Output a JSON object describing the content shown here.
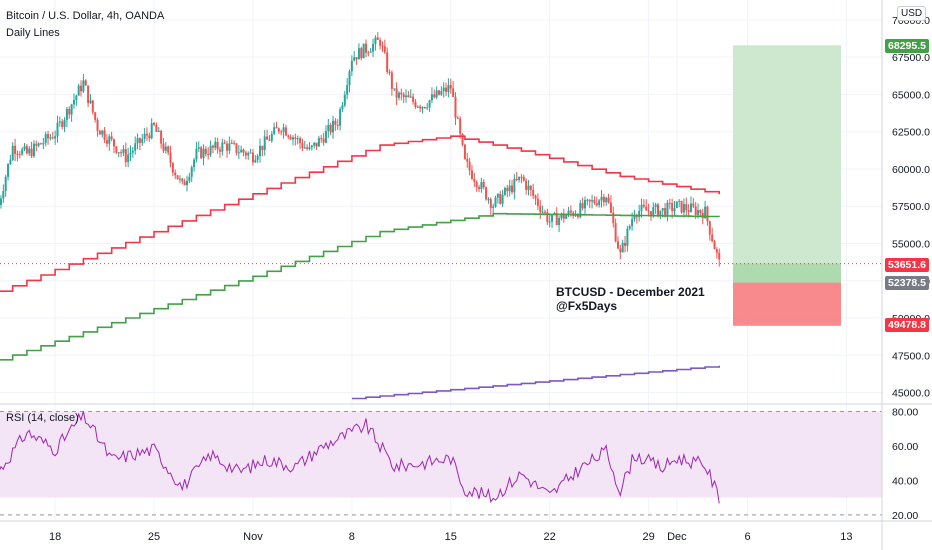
{
  "header": {
    "title": "Bitcoin / U.S. Dollar, 4h, OANDA",
    "indicator": "Daily Lines",
    "currency_button": "USD"
  },
  "annotation": {
    "line1": "BTCUSD - December 2021",
    "line2": "@Fx5Days"
  },
  "price_labels": {
    "target": "68295.5",
    "current": "53651.6",
    "entry": "52378.5",
    "stop": "49478.8"
  },
  "rsi_label": "RSI (14, close)",
  "colors": {
    "up": "#26a69a",
    "down": "#ef5350",
    "red_line": "#f23645",
    "green_line": "#43a047",
    "purple_line": "#7e57c2",
    "target_zone": "#c8e6c9",
    "stop_zone": "#f77c80",
    "entry_label": "#787b86",
    "rsi_band": "#f3e5f5",
    "rsi_line": "#9c27b0"
  },
  "chart_data": [
    {
      "type": "candlestick",
      "title": "Bitcoin / U.S. Dollar, 4h, OANDA",
      "price_axis_ticks": [
        "70000.0",
        "67500.0",
        "65000.0",
        "62500.0",
        "60000.0",
        "57500.0",
        "55000.0",
        "52500.0",
        "50000.0",
        "47500.0",
        "45000.0"
      ],
      "price_ylim": [
        44500,
        71000
      ],
      "time_axis_ticks": [
        "18",
        "25",
        "Nov",
        "8",
        "15",
        "22",
        "29",
        "Dec",
        "6",
        "13"
      ],
      "daily_close_trend": [
        {
          "date": "Oct 14",
          "value": 57600
        },
        {
          "date": "Oct 15",
          "value": 61500
        },
        {
          "date": "Oct 16",
          "value": 61000
        },
        {
          "date": "Oct 18",
          "value": 62400
        },
        {
          "date": "Oct 20",
          "value": 65800
        },
        {
          "date": "Oct 21",
          "value": 62800
        },
        {
          "date": "Oct 23",
          "value": 60800
        },
        {
          "date": "Oct 25",
          "value": 62800
        },
        {
          "date": "Oct 27",
          "value": 58800
        },
        {
          "date": "Oct 28",
          "value": 61000
        },
        {
          "date": "Oct 30",
          "value": 61600
        },
        {
          "date": "Nov 1",
          "value": 60900
        },
        {
          "date": "Nov 3",
          "value": 62900
        },
        {
          "date": "Nov 5",
          "value": 61200
        },
        {
          "date": "Nov 7",
          "value": 63200
        },
        {
          "date": "Nov 8",
          "value": 67500
        },
        {
          "date": "Nov 10",
          "value": 68600
        },
        {
          "date": "Nov 11",
          "value": 65000
        },
        {
          "date": "Nov 13",
          "value": 64300
        },
        {
          "date": "Nov 15",
          "value": 65500
        },
        {
          "date": "Nov 16",
          "value": 60400
        },
        {
          "date": "Nov 18",
          "value": 57600
        },
        {
          "date": "Nov 20",
          "value": 59400
        },
        {
          "date": "Nov 22",
          "value": 56500
        },
        {
          "date": "Nov 24",
          "value": 57200
        },
        {
          "date": "Nov 26",
          "value": 58300
        },
        {
          "date": "Nov 27",
          "value": 54200
        },
        {
          "date": "Nov 28",
          "value": 57200
        },
        {
          "date": "Nov 30",
          "value": 57200
        },
        {
          "date": "Dec 1",
          "value": 57500
        },
        {
          "date": "Dec 3",
          "value": 57100
        },
        {
          "date": "Dec 4",
          "value": 53651.6
        }
      ],
      "series": [
        {
          "color": "red",
          "values": [
            {
              "date": "Oct 14",
              "value": 51800
            },
            {
              "date": "Nov 10",
              "value": 61600
            },
            {
              "date": "Nov 15",
              "value": 62200
            },
            {
              "date": "Nov 20",
              "value": 61200
            },
            {
              "date": "Nov 27",
              "value": 59500
            },
            {
              "date": "Dec 4",
              "value": 58300
            }
          ]
        },
        {
          "color": "green",
          "values": [
            {
              "date": "Oct 14",
              "value": 47200
            },
            {
              "date": "Nov 1",
              "value": 52800
            },
            {
              "date": "Nov 10",
              "value": 55800
            },
            {
              "date": "Nov 18",
              "value": 57000
            },
            {
              "date": "Dec 4",
              "value": 56800
            }
          ]
        },
        {
          "color": "purple",
          "values": [
            {
              "date": "Nov 8",
              "value": 44600
            },
            {
              "date": "Dec 4",
              "value": 46800
            }
          ]
        }
      ],
      "position": {
        "target": 68295.5,
        "entry": 52378.5,
        "stop": 49478.8,
        "current": 53651.6
      }
    },
    {
      "type": "line",
      "title": "RSI (14, close)",
      "y_ticks": [
        "80.00",
        "60.00",
        "40.00",
        "20.00"
      ],
      "ylim": [
        17,
        82
      ],
      "band": [
        30,
        80
      ],
      "values": [
        {
          "date": "Oct 14",
          "value": 45
        },
        {
          "date": "Oct 16",
          "value": 68
        },
        {
          "date": "Oct 18",
          "value": 58
        },
        {
          "date": "Oct 20",
          "value": 78
        },
        {
          "date": "Oct 22",
          "value": 52
        },
        {
          "date": "Oct 25",
          "value": 58
        },
        {
          "date": "Oct 27",
          "value": 36
        },
        {
          "date": "Oct 29",
          "value": 55
        },
        {
          "date": "Oct 31",
          "value": 45
        },
        {
          "date": "Nov 2",
          "value": 52
        },
        {
          "date": "Nov 4",
          "value": 48
        },
        {
          "date": "Nov 6",
          "value": 60
        },
        {
          "date": "Nov 9",
          "value": 72
        },
        {
          "date": "Nov 11",
          "value": 48
        },
        {
          "date": "Nov 13",
          "value": 50
        },
        {
          "date": "Nov 15",
          "value": 53
        },
        {
          "date": "Nov 16",
          "value": 35
        },
        {
          "date": "Nov 18",
          "value": 30
        },
        {
          "date": "Nov 20",
          "value": 44
        },
        {
          "date": "Nov 22",
          "value": 31
        },
        {
          "date": "Nov 24",
          "value": 46
        },
        {
          "date": "Nov 26",
          "value": 57
        },
        {
          "date": "Nov 27",
          "value": 34
        },
        {
          "date": "Nov 28",
          "value": 55
        },
        {
          "date": "Nov 30",
          "value": 47
        },
        {
          "date": "Dec 1",
          "value": 53
        },
        {
          "date": "Dec 3",
          "value": 49
        },
        {
          "date": "Dec 4",
          "value": 30
        }
      ]
    }
  ]
}
